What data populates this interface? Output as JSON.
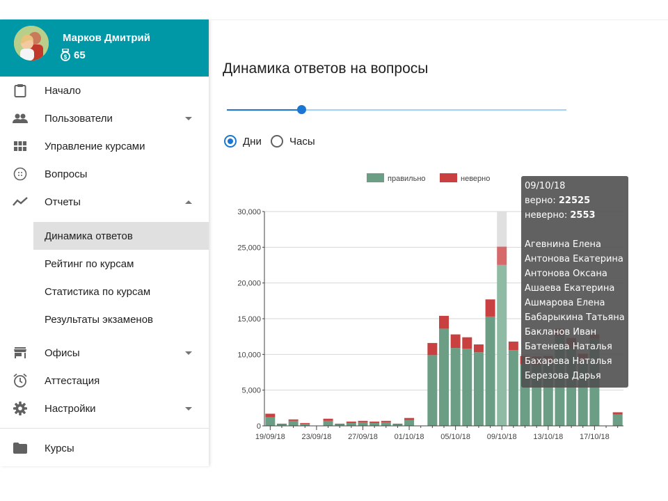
{
  "user": {
    "name": "Марков Дмитрий",
    "coins": "65"
  },
  "nav": {
    "items": [
      {
        "label": "Начало",
        "icon": "clipboard-icon"
      },
      {
        "label": "Пользователи",
        "icon": "people-icon"
      },
      {
        "label": "Управление курсами",
        "icon": "grid-icon"
      },
      {
        "label": "Вопросы",
        "icon": "dots-circle-icon"
      },
      {
        "label": "Отчеты",
        "icon": "trending-icon"
      }
    ],
    "sub_items": [
      "Динамика ответов",
      "Рейтинг по курсам",
      "Статистика по курсам",
      "Результаты экзаменов"
    ],
    "items2": [
      {
        "label": "Офисы",
        "icon": "store-icon"
      },
      {
        "label": "Аттестация",
        "icon": "alarm-icon"
      },
      {
        "label": "Настройки",
        "icon": "gear-icon"
      }
    ],
    "courses": "Курсы"
  },
  "page": {
    "title": "Динамика ответов на вопросы",
    "slider_value": 0.22,
    "radio_days": "Дни",
    "radio_hours": "Часы"
  },
  "colors": {
    "correct": "#6b9e84",
    "wrong": "#c94040",
    "accent": "#1976d2",
    "header": "#0097a7"
  },
  "chart_data": {
    "type": "bar",
    "stacked": true,
    "ylim": [
      0,
      30000
    ],
    "yticks": [
      0,
      5000,
      10000,
      15000,
      20000,
      25000,
      30000
    ],
    "ytick_labels": [
      "0",
      "5,000",
      "10,000",
      "15,000",
      "20,000",
      "25,000",
      "30,000"
    ],
    "xtick_labels": [
      "19/09/18",
      "23/09/18",
      "27/09/18",
      "01/10/18",
      "05/10/18",
      "09/10/18",
      "13/10/18",
      "17/10/18"
    ],
    "xtick_every": 4,
    "categories": [
      "19/09/18",
      "20/09/18",
      "21/09/18",
      "22/09/18",
      "23/09/18",
      "24/09/18",
      "25/09/18",
      "26/09/18",
      "27/09/18",
      "28/09/18",
      "29/09/18",
      "30/09/18",
      "01/10/18",
      "02/10/18",
      "03/10/18",
      "04/10/18",
      "05/10/18",
      "06/10/18",
      "07/10/18",
      "08/10/18",
      "09/10/18",
      "10/10/18",
      "11/10/18",
      "12/10/18",
      "13/10/18",
      "14/10/18",
      "15/10/18",
      "16/10/18",
      "17/10/18",
      "18/10/18",
      "19/10/18"
    ],
    "series": [
      {
        "name": "правильно",
        "values": [
          1200,
          200,
          700,
          300,
          0,
          700,
          200,
          400,
          500,
          400,
          500,
          200,
          800,
          0,
          9900,
          13600,
          10900,
          10800,
          10300,
          15300,
          22525,
          10600,
          8600,
          8500,
          8700,
          12600,
          10900,
          9000,
          12200,
          0,
          1600
        ]
      },
      {
        "name": "неверно",
        "values": [
          500,
          100,
          200,
          100,
          0,
          300,
          100,
          200,
          200,
          200,
          200,
          100,
          300,
          0,
          1700,
          1800,
          1900,
          1600,
          1100,
          2400,
          2553,
          1200,
          1200,
          1200,
          1100,
          1000,
          1400,
          1100,
          600,
          0,
          300
        ]
      }
    ],
    "highlight_index": 20,
    "tooltip": {
      "date": "09/10/18",
      "correct_label": "верно:",
      "correct_value": "22525",
      "wrong_label": "неверно:",
      "wrong_value": "2553",
      "names": [
        "Агевнина Елена",
        "Антонова Екатерина",
        "Антонова Оксана",
        "Ашаева Екатерина",
        "Ашмарова Елена",
        "Бабарыкина Татьяна",
        "Бакланов Иван",
        "Батенева Наталья",
        "Бахарева Наталья",
        "Березова Дарья"
      ]
    }
  }
}
